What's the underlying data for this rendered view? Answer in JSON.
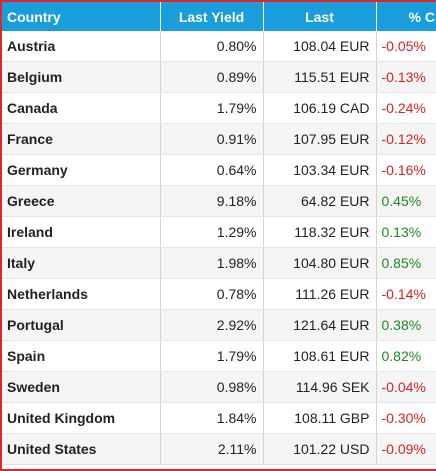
{
  "header": {
    "country": "Country",
    "last_yield": "Last Yield",
    "last": "Last",
    "pct_change": "% Ch"
  },
  "colors": {
    "header_bg": "#1a9ddb",
    "frame_border": "#e0252b",
    "negative": "#e02020",
    "positive": "#1f8a1f"
  },
  "rows": [
    {
      "country": "Austria",
      "yield": "0.80%",
      "last": "108.04 EUR",
      "pct": "-0.05%",
      "dir": "neg"
    },
    {
      "country": "Belgium",
      "yield": "0.89%",
      "last": "115.51 EUR",
      "pct": "-0.13%",
      "dir": "neg"
    },
    {
      "country": "Canada",
      "yield": "1.79%",
      "last": "106.19 CAD",
      "pct": "-0.24%",
      "dir": "neg"
    },
    {
      "country": "France",
      "yield": "0.91%",
      "last": "107.95 EUR",
      "pct": "-0.12%",
      "dir": "neg"
    },
    {
      "country": "Germany",
      "yield": "0.64%",
      "last": "103.34 EUR",
      "pct": "-0.16%",
      "dir": "neg"
    },
    {
      "country": "Greece",
      "yield": "9.18%",
      "last": "64.82 EUR",
      "pct": "0.45%",
      "dir": "pos"
    },
    {
      "country": "Ireland",
      "yield": "1.29%",
      "last": "118.32 EUR",
      "pct": "0.13%",
      "dir": "pos"
    },
    {
      "country": "Italy",
      "yield": "1.98%",
      "last": "104.80 EUR",
      "pct": "0.85%",
      "dir": "pos"
    },
    {
      "country": "Netherlands",
      "yield": "0.78%",
      "last": "111.26 EUR",
      "pct": "-0.14%",
      "dir": "neg"
    },
    {
      "country": "Portugal",
      "yield": "2.92%",
      "last": "121.64 EUR",
      "pct": "0.38%",
      "dir": "pos"
    },
    {
      "country": "Spain",
      "yield": "1.79%",
      "last": "108.61 EUR",
      "pct": "0.82%",
      "dir": "pos"
    },
    {
      "country": "Sweden",
      "yield": "0.98%",
      "last": "114.96 SEK",
      "pct": "-0.04%",
      "dir": "neg"
    },
    {
      "country": "United Kingdom",
      "yield": "1.84%",
      "last": "108.11 GBP",
      "pct": "-0.30%",
      "dir": "neg"
    },
    {
      "country": "United States",
      "yield": "2.11%",
      "last": "101.22 USD",
      "pct": "-0.09%",
      "dir": "neg"
    }
  ]
}
